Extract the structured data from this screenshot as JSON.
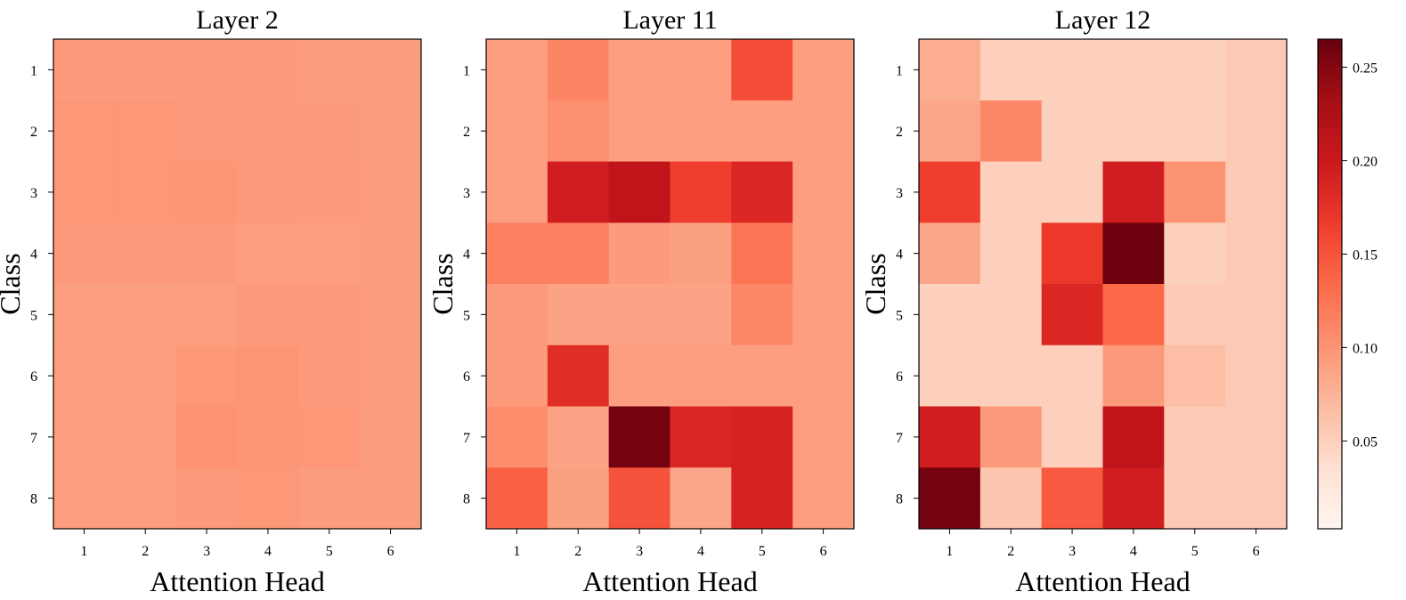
{
  "chart_data": [
    {
      "type": "heatmap",
      "title": "Layer 2",
      "xlabel": "Attention Head",
      "ylabel": "Class",
      "x": [
        "1",
        "2",
        "3",
        "4",
        "5",
        "6"
      ],
      "y": [
        "1",
        "2",
        "3",
        "4",
        "5",
        "6",
        "7",
        "8"
      ],
      "values": [
        [
          0.095,
          0.095,
          0.094,
          0.094,
          0.093,
          0.093
        ],
        [
          0.097,
          0.097,
          0.096,
          0.095,
          0.094,
          0.093
        ],
        [
          0.097,
          0.097,
          0.098,
          0.096,
          0.095,
          0.093
        ],
        [
          0.095,
          0.095,
          0.094,
          0.092,
          0.092,
          0.093
        ],
        [
          0.091,
          0.091,
          0.091,
          0.095,
          0.095,
          0.093
        ],
        [
          0.092,
          0.092,
          0.097,
          0.099,
          0.095,
          0.093
        ],
        [
          0.092,
          0.092,
          0.101,
          0.098,
          0.097,
          0.093
        ],
        [
          0.092,
          0.092,
          0.096,
          0.097,
          0.093,
          0.093
        ]
      ]
    },
    {
      "type": "heatmap",
      "title": "Layer 11",
      "xlabel": "Attention Head",
      "ylabel": "Class",
      "x": [
        "1",
        "2",
        "3",
        "4",
        "5",
        "6"
      ],
      "y": [
        "1",
        "2",
        "3",
        "4",
        "5",
        "6",
        "7",
        "8"
      ],
      "values": [
        [
          0.092,
          0.112,
          0.092,
          0.092,
          0.155,
          0.092
        ],
        [
          0.092,
          0.104,
          0.092,
          0.092,
          0.092,
          0.092
        ],
        [
          0.092,
          0.195,
          0.21,
          0.165,
          0.185,
          0.092
        ],
        [
          0.115,
          0.115,
          0.095,
          0.09,
          0.125,
          0.092
        ],
        [
          0.095,
          0.088,
          0.088,
          0.088,
          0.11,
          0.092
        ],
        [
          0.095,
          0.18,
          0.092,
          0.092,
          0.092,
          0.092
        ],
        [
          0.105,
          0.088,
          0.258,
          0.185,
          0.19,
          0.092
        ],
        [
          0.14,
          0.09,
          0.15,
          0.085,
          0.19,
          0.092
        ]
      ]
    },
    {
      "type": "heatmap",
      "title": "Layer 12",
      "xlabel": "Attention Head",
      "ylabel": "Class",
      "x": [
        "1",
        "2",
        "3",
        "4",
        "5",
        "6"
      ],
      "y": [
        "1",
        "2",
        "3",
        "4",
        "5",
        "6",
        "7",
        "8"
      ],
      "values": [
        [
          0.08,
          0.05,
          0.05,
          0.05,
          0.05,
          0.055
        ],
        [
          0.085,
          0.11,
          0.05,
          0.05,
          0.05,
          0.055
        ],
        [
          0.165,
          0.05,
          0.05,
          0.195,
          0.1,
          0.055
        ],
        [
          0.085,
          0.05,
          0.17,
          0.262,
          0.05,
          0.055
        ],
        [
          0.05,
          0.05,
          0.185,
          0.135,
          0.055,
          0.055
        ],
        [
          0.05,
          0.05,
          0.05,
          0.095,
          0.065,
          0.055
        ],
        [
          0.195,
          0.095,
          0.05,
          0.21,
          0.055,
          0.055
        ],
        [
          0.258,
          0.06,
          0.145,
          0.195,
          0.055,
          0.055
        ]
      ]
    }
  ],
  "colorbar": {
    "colormap": "Reds",
    "range": [
      0.003,
      0.265
    ],
    "ticks": [
      0.05,
      0.1,
      0.15,
      0.2,
      0.25
    ],
    "tick_labels": [
      "0.05",
      "0.10",
      "0.15",
      "0.20",
      "0.25"
    ]
  },
  "colormap_stops": [
    "#fff5f0",
    "#fee0d2",
    "#fcbba1",
    "#fc9272",
    "#fb6a4a",
    "#ef3b2c",
    "#cb181d",
    "#a50f15",
    "#67000d"
  ]
}
